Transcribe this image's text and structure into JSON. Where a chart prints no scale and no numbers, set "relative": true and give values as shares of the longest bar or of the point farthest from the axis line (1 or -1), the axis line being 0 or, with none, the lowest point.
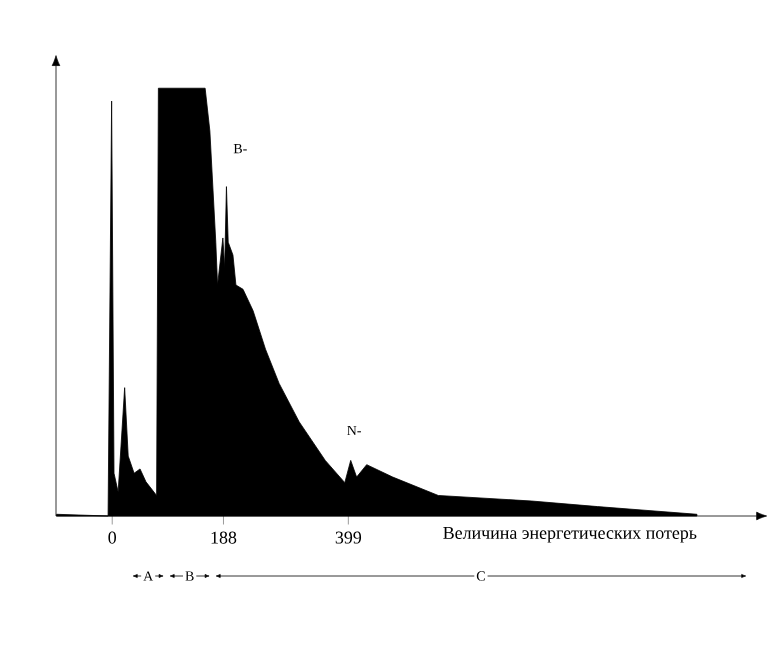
{
  "chart_data": {
    "type": "area",
    "relative": true,
    "color": "#000000",
    "xlabel": "Величина энергетических потерь",
    "xlim": [
      -95,
      1000
    ],
    "xticks": [
      0,
      188,
      399
    ],
    "x": [
      -94,
      -7,
      -1,
      3,
      10,
      21,
      27,
      37,
      47,
      57,
      75,
      78,
      157,
      165,
      175,
      178,
      187,
      190,
      193,
      196,
      204,
      209,
      221,
      238,
      259,
      282,
      316,
      360,
      393,
      403,
      413,
      430,
      474,
      551,
      709,
      820,
      988
    ],
    "values": [
      0.004,
      0,
      0.97,
      0.1,
      0.056,
      0.3,
      0.14,
      0.1,
      0.11,
      0.08,
      0.048,
      1,
      1,
      0.9,
      0.64,
      0.54,
      0.65,
      0.58,
      0.77,
      0.64,
      0.61,
      0.54,
      0.53,
      0.48,
      0.39,
      0.31,
      0.22,
      0.13,
      0.078,
      0.13,
      0.091,
      0.12,
      0.091,
      0.048,
      0.035,
      0.022,
      0.004
    ],
    "annotations": [
      "B-",
      "N-",
      "A",
      "B",
      "C"
    ]
  }
}
